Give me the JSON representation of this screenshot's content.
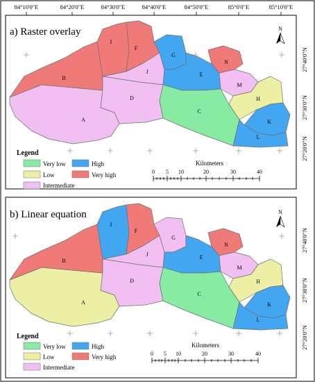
{
  "top_labels": [
    "84°10'0\"E",
    "84°20'0\"E",
    "84°30'0\"E",
    "84°40'0\"E",
    "84°50'0\"E",
    "85°0'0\"E",
    "85°10'0\"E"
  ],
  "right_labels": [
    "27°40'0\"N",
    "27°30'0\"N",
    "27°20'0\"N"
  ],
  "colors": {
    "very_low": "#88eba4",
    "low": "#ecefa4",
    "intermediate": "#f2bff2",
    "high": "#42a7f0",
    "very_high": "#f07a78",
    "border": "#6e6e6e",
    "frame": "#000000",
    "graticule": "#9a9a9a"
  },
  "panels": [
    {
      "title": "a) Raster overlay",
      "north": "N",
      "legend_title": "Legend",
      "legend": [
        "Very low",
        "Low",
        "Intermediate",
        "High",
        "Very high"
      ],
      "scale_title": "Kilometers",
      "scale_ticks": [
        "0",
        "5",
        "10",
        "20",
        "30",
        "40"
      ],
      "zones": {
        "A": "intermediate",
        "B": "very_high",
        "C": "very_low",
        "D": "intermediate",
        "E": "high",
        "F": "very_high",
        "G": "high",
        "H": "low",
        "I": "very_high",
        "J": "intermediate",
        "K": "high",
        "L": "high",
        "M": "intermediate",
        "N": "very_high"
      }
    },
    {
      "title": "b) Linear equation",
      "north": "N",
      "legend_title": "Legend",
      "legend": [
        "Very low",
        "Low",
        "Intermediate",
        "High",
        "Very high"
      ],
      "scale_title": "Kilometers",
      "scale_ticks": [
        "0",
        "5",
        "10",
        "20",
        "30",
        "40"
      ],
      "zones": {
        "A": "low",
        "B": "very_high",
        "C": "very_low",
        "D": "intermediate",
        "E": "high",
        "F": "very_high",
        "G": "intermediate",
        "H": "low",
        "I": "high",
        "J": "intermediate",
        "K": "high",
        "L": "high",
        "M": "intermediate",
        "N": "very_high"
      }
    }
  ]
}
